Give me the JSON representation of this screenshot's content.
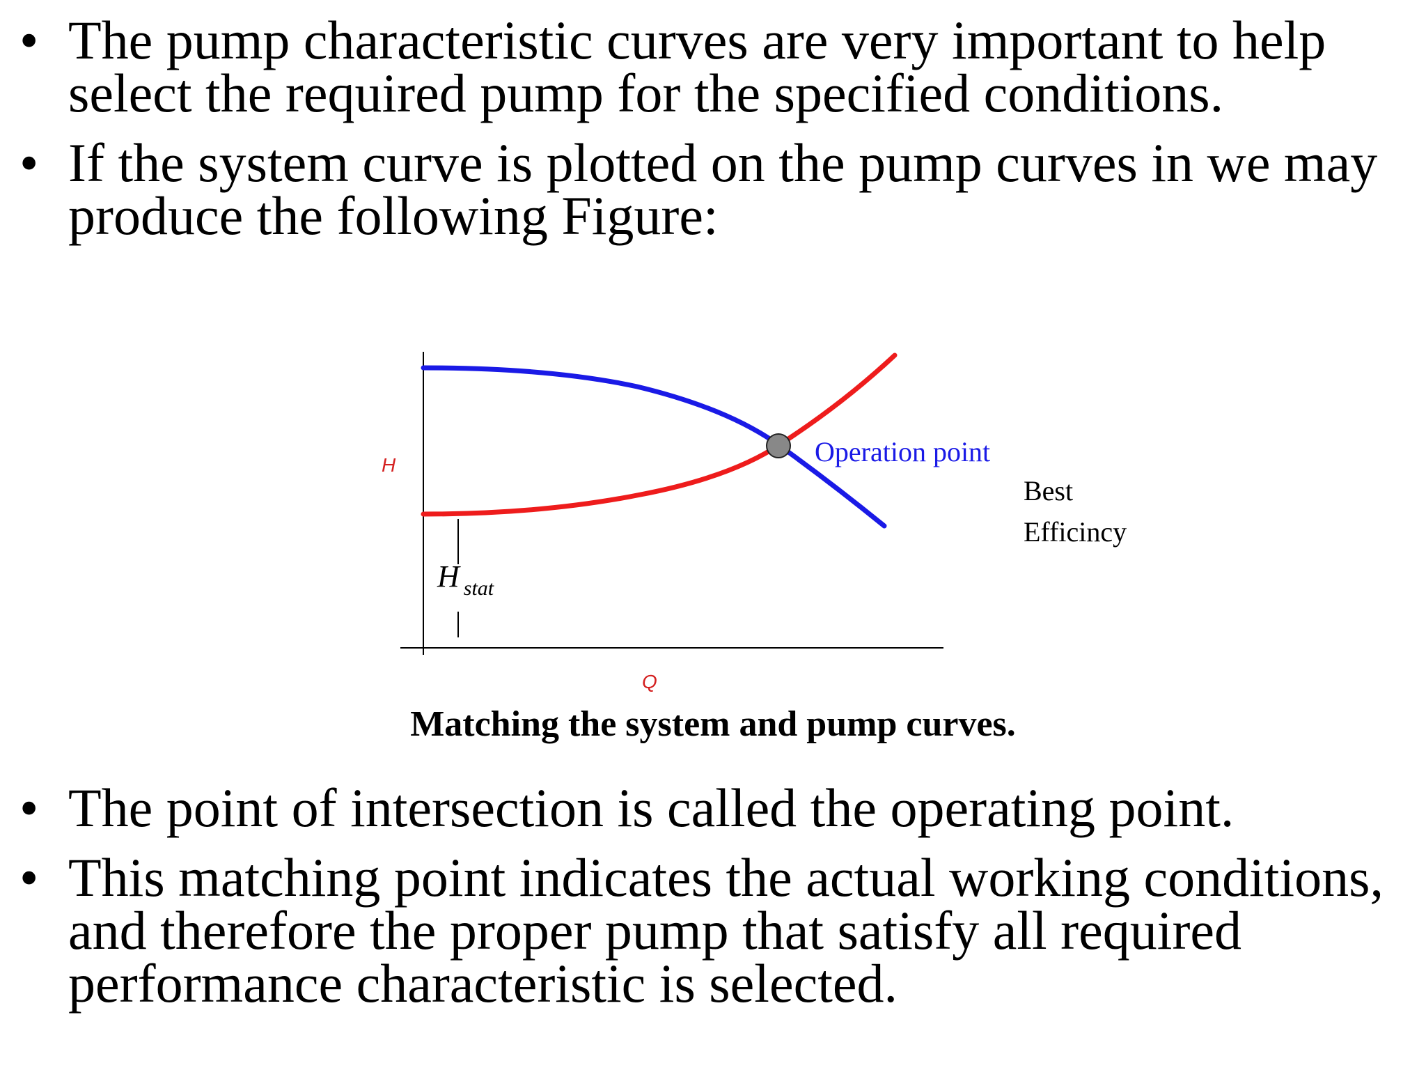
{
  "bullets_top": [
    {
      "lines": [
        "The pump characteristic curves are very important to help",
        "select the required pump for the specified conditions."
      ]
    },
    {
      "lines": [
        "If the system curve is plotted on the pump curves in we may",
        "produce the following Figure:"
      ]
    }
  ],
  "figure": {
    "y_label": "H",
    "x_label": "Q",
    "hstat_main": "H",
    "hstat_sub": "stat",
    "operation_point_label": "Operation point",
    "best_efficiency_label_1": "Best",
    "best_efficiency_label_2": "Efficincy",
    "caption": "Matching the system and pump curves.",
    "colors": {
      "pump_curve": "#1a1ae6",
      "system_curve": "#ee1c1c",
      "operating_point": "#888888",
      "axis_label": "#d42020",
      "annotation": "#1a1ae6"
    }
  },
  "bullets_bottom": [
    {
      "lines": [
        "The point of intersection is called the operating point."
      ]
    },
    {
      "lines": [
        "This matching point indicates the actual working conditions,",
        "and therefore the proper pump that satisfy all required",
        "performance characteristic is selected."
      ]
    }
  ],
  "bullet_glyph": "•"
}
